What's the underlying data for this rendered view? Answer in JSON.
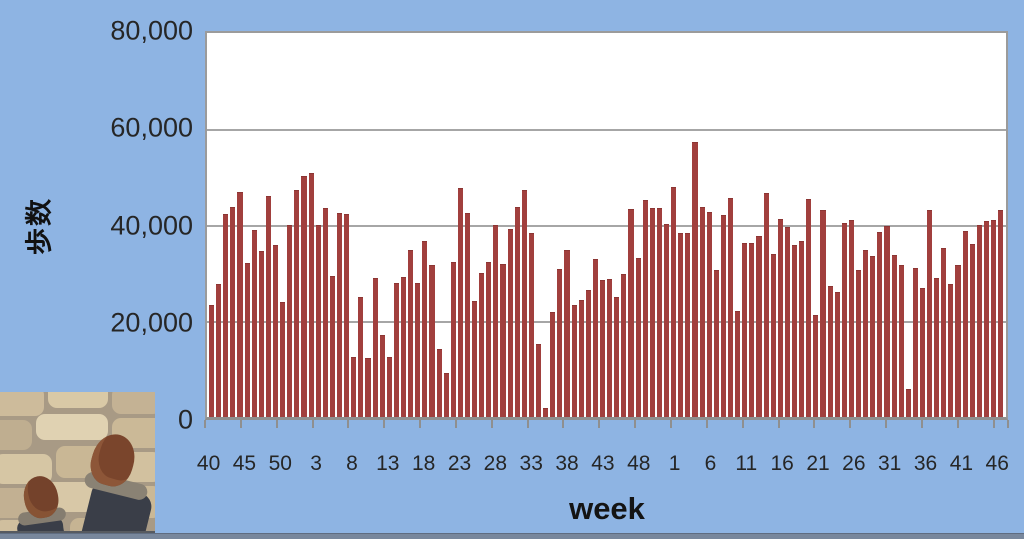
{
  "colors": {
    "background": "#8eb4e3",
    "plot_background": "#ffffff",
    "bar": "#a13f3d",
    "gridline": "#a6a6a6",
    "axis": "#8f8f8f",
    "text": "#262626"
  },
  "photo": {
    "description": "top-down snapshot of two feet in brown shoes and dark trousers walking on beige stone pavement"
  },
  "chart_data": {
    "type": "bar",
    "title": "",
    "xlabel": "week",
    "ylabel": "歩数",
    "ylim": [
      0,
      80000
    ],
    "grid": true,
    "y_tick_labels": [
      "0",
      "20,000",
      "40,000",
      "60,000",
      "80,000"
    ],
    "y_tick_values": [
      0,
      20000,
      40000,
      60000,
      80000
    ],
    "x_tick_labels": [
      "40",
      "45",
      "50",
      "3",
      "8",
      "13",
      "18",
      "23",
      "28",
      "33",
      "38",
      "43",
      "48",
      "1",
      "6",
      "11",
      "16",
      "21",
      "26",
      "31",
      "36",
      "41",
      "46"
    ],
    "x_label_interval": 5,
    "categories_note": "weekly step totals, weeks 40-52 then 1-52 then 1-47",
    "values": [
      23300,
      27700,
      42300,
      43800,
      46900,
      32100,
      38900,
      34600,
      46100,
      35800,
      24000,
      40000,
      47200,
      50200,
      50900,
      40100,
      43600,
      29400,
      42500,
      42200,
      12400,
      25100,
      12200,
      28900,
      17000,
      12500,
      28000,
      29200,
      34800,
      28000,
      36700,
      31700,
      14200,
      9200,
      32200,
      47700,
      42500,
      24200,
      30100,
      32200,
      40000,
      31800,
      39200,
      43800,
      47300,
      38400,
      15200,
      1800,
      21800,
      30900,
      34800,
      23300,
      24400,
      26500,
      32900,
      28600,
      28700,
      25100,
      29800,
      43300,
      33200,
      45300,
      43600,
      43600,
      40200,
      47900,
      38400,
      38300,
      57200,
      43800,
      42700,
      30700,
      42000,
      45700,
      22000,
      36300,
      36300,
      37700,
      46700,
      33900,
      41300,
      39600,
      35800,
      36700,
      45500,
      21300,
      43100,
      27300,
      26000,
      40500,
      41000,
      30600,
      34800,
      33600,
      38600,
      39800,
      33800,
      31700,
      5900,
      31000,
      26800,
      43100,
      28900,
      35300,
      27700,
      31600,
      38800,
      36100,
      40000,
      40800,
      41000,
      43100
    ]
  }
}
